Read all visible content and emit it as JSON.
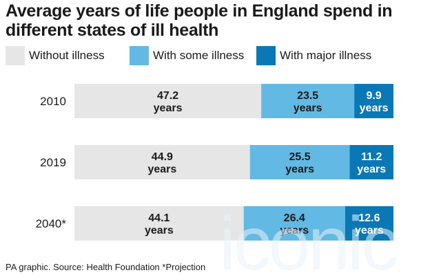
{
  "chart_data": {
    "type": "bar",
    "orientation": "horizontal",
    "stacked": true,
    "title": "Average years of life people in England spend in different states of ill health",
    "categories": [
      "2010",
      "2019",
      "2040*"
    ],
    "series": [
      {
        "name": "Without illness",
        "color": "#e6e6e6",
        "values": [
          47.2,
          44.9,
          44.1
        ],
        "labels": [
          "47.2",
          "44.9",
          "44.1"
        ]
      },
      {
        "name": "With some illness",
        "color": "#62b9e3",
        "values": [
          23.5,
          25.5,
          26.4
        ],
        "labels": [
          "23.5",
          "25.5",
          "26.4"
        ]
      },
      {
        "name": "With major illness",
        "color": "#0a78b5",
        "values": [
          9.9,
          11.2,
          12.6
        ],
        "labels": [
          "9.9",
          "11.2",
          "12.6"
        ]
      }
    ],
    "value_unit_label": "years",
    "legend_position": "top"
  },
  "footer": "PA graphic. Source: Health Foundation *Projection",
  "watermark": "iconic"
}
